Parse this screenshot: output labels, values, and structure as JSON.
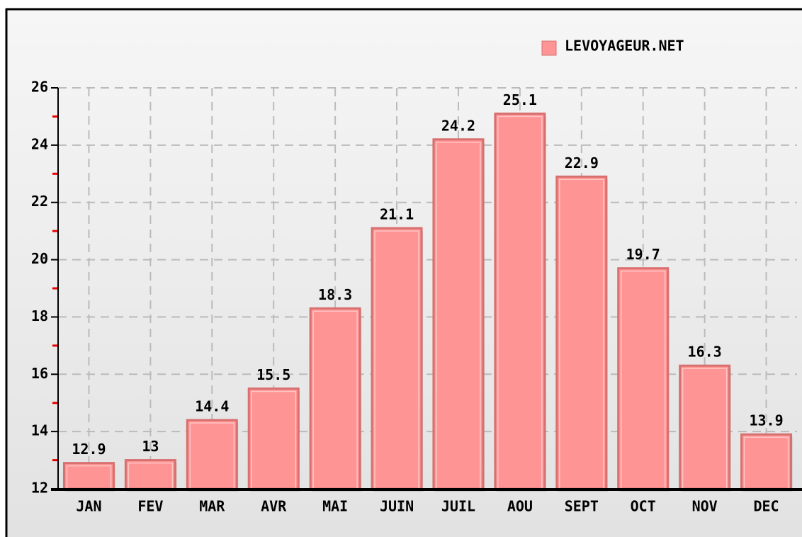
{
  "chart_data": {
    "type": "bar",
    "legend": "LEVOYAGEUR.NET",
    "categories": [
      "JAN",
      "FEV",
      "MAR",
      "AVR",
      "MAI",
      "JUIN",
      "JUIL",
      "AOU",
      "SEPT",
      "OCT",
      "NOV",
      "DEC"
    ],
    "values": [
      12.9,
      13,
      14.4,
      15.5,
      18.3,
      21.1,
      24.2,
      25.1,
      22.9,
      19.7,
      16.3,
      13.9
    ],
    "color": "#ff9494",
    "ylim": [
      12,
      26
    ],
    "yticks": [
      12,
      14,
      16,
      18,
      20,
      22,
      24,
      26
    ],
    "grid": true
  }
}
